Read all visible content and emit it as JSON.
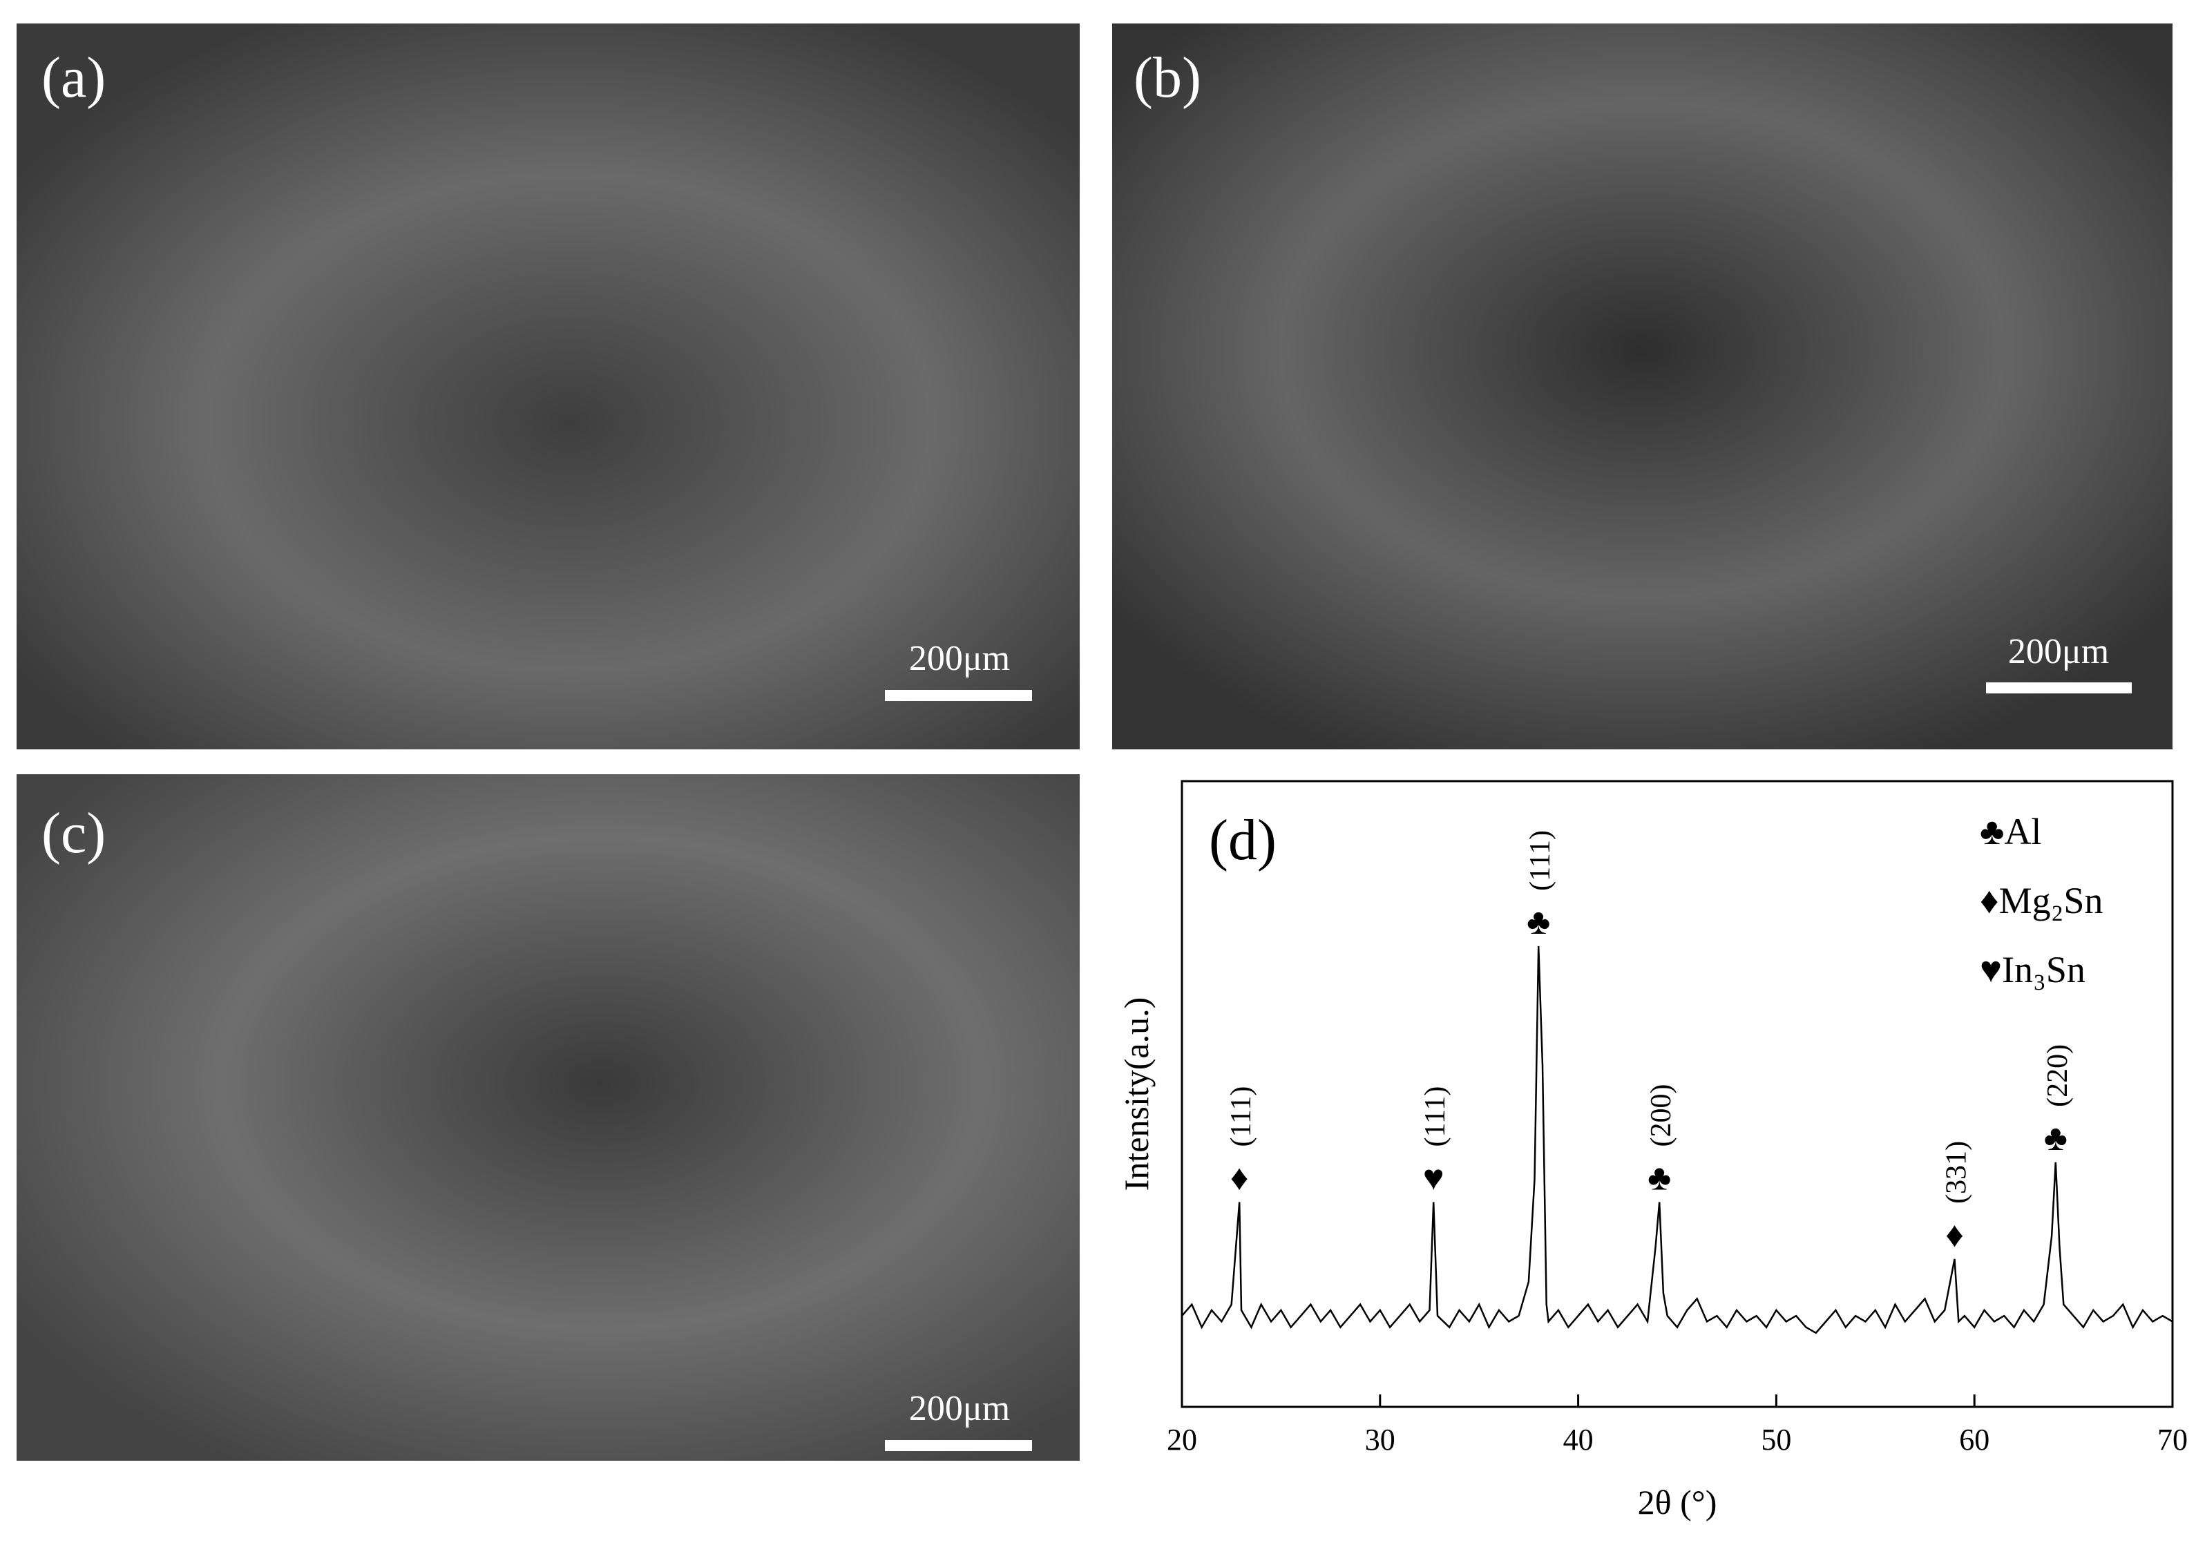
{
  "panels": [
    {
      "label": "(a)",
      "scale_bar": "200μm"
    },
    {
      "label": "(b)",
      "scale_bar": "200μm"
    },
    {
      "label": "(c)",
      "scale_bar": "200μm"
    }
  ],
  "chart_data": {
    "type": "line",
    "panel_label": "(d)",
    "color": "#000000",
    "xlabel": "2θ (°)",
    "ylabel": "Intensity(a.u.)",
    "xlim": [
      20,
      70
    ],
    "ylim": [
      0,
      110
    ],
    "xticks": [
      20,
      30,
      40,
      50,
      60,
      70
    ],
    "x": [
      20,
      20.5,
      21,
      21.5,
      22,
      22.5,
      22.9,
      23,
      23.5,
      24,
      24.5,
      25,
      25.5,
      26,
      26.5,
      27,
      27.5,
      28,
      28.5,
      29,
      29.5,
      30,
      30.5,
      31,
      31.5,
      32,
      32.5,
      32.7,
      32.9,
      33.5,
      34,
      34.5,
      35,
      35.5,
      36,
      36.5,
      37,
      37.5,
      37.8,
      38.0,
      38.2,
      38.4,
      38.5,
      39,
      39.5,
      40,
      40.5,
      41,
      41.5,
      42,
      42.5,
      43,
      43.5,
      43.9,
      44.1,
      44.3,
      44.5,
      45,
      45.5,
      46,
      46.5,
      47,
      47.5,
      48,
      48.5,
      49,
      49.5,
      50,
      50.5,
      51,
      51.5,
      52,
      52.5,
      53,
      53.5,
      54,
      54.5,
      55,
      55.5,
      56,
      56.5,
      57,
      57.5,
      58,
      58.5,
      59,
      59.2,
      59.5,
      60,
      60.5,
      61,
      61.5,
      62,
      62.5,
      63,
      63.5,
      63.9,
      64.1,
      64.3,
      64.5,
      65,
      65.5,
      66,
      66.5,
      67,
      67.5,
      68,
      68.5,
      69,
      69.5,
      70
    ],
    "values": [
      16,
      18,
      14,
      17,
      15,
      18,
      36,
      17,
      14,
      18,
      15,
      17,
      14,
      16,
      18,
      15,
      17,
      14,
      16,
      18,
      15,
      17,
      14,
      16,
      18,
      15,
      17,
      36,
      16,
      14,
      17,
      15,
      18,
      14,
      17,
      15,
      16,
      22,
      40,
      81,
      60,
      18,
      15,
      17,
      14,
      16,
      18,
      15,
      17,
      14,
      16,
      18,
      15,
      28,
      36,
      20,
      16,
      14,
      17,
      19,
      15,
      16,
      14,
      17,
      15,
      16,
      14,
      17,
      15,
      16,
      14,
      13,
      15,
      17,
      14,
      16,
      15,
      17,
      14,
      18,
      15,
      17,
      19,
      15,
      17,
      26,
      15,
      16,
      14,
      17,
      15,
      16,
      14,
      17,
      15,
      18,
      30,
      43,
      28,
      18,
      16,
      14,
      17,
      15,
      16,
      18,
      14,
      17,
      15,
      16,
      15
    ],
    "annotations": [
      {
        "x": 22.9,
        "symbol": "♦",
        "label": "(111)"
      },
      {
        "x": 32.7,
        "symbol": "♥",
        "label": "(111)"
      },
      {
        "x": 38.0,
        "symbol": "♣",
        "label": "(111)"
      },
      {
        "x": 44.1,
        "symbol": "♣",
        "label": "(200)"
      },
      {
        "x": 59.0,
        "symbol": "♦",
        "label": "(331)"
      },
      {
        "x": 64.1,
        "symbol": "♣",
        "label": "(220)"
      }
    ],
    "legend": [
      {
        "symbol": "♣",
        "name": "Al"
      },
      {
        "symbol": "♦",
        "name": "Mg₂Sn"
      },
      {
        "symbol": "♥",
        "name": "In₃Sn"
      }
    ]
  }
}
